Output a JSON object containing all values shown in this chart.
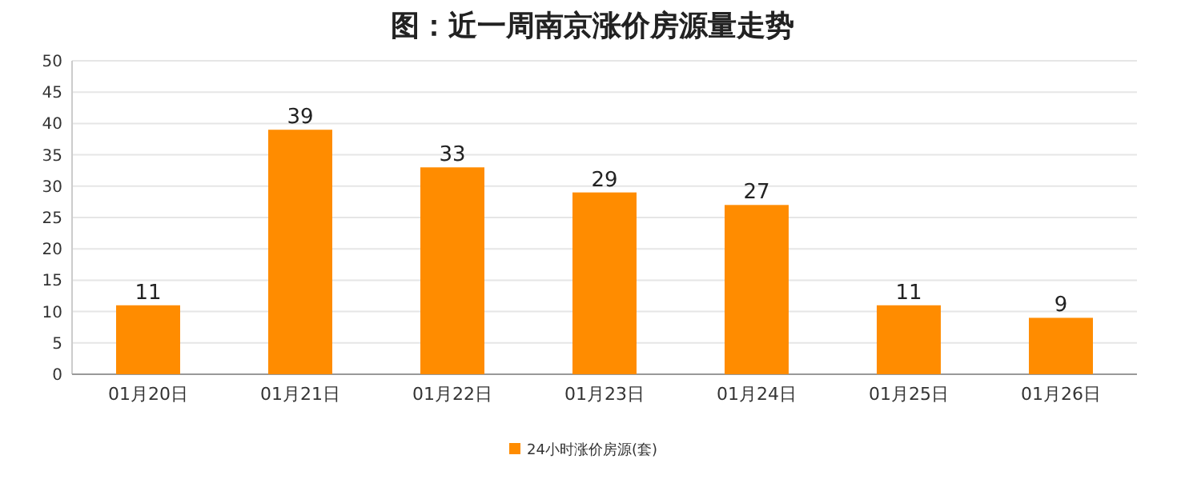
{
  "chart_data": {
    "type": "bar",
    "title": "图：近一周南京涨价房源量走势",
    "categories": [
      "01月20日",
      "01月21日",
      "01月22日",
      "01月23日",
      "01月24日",
      "01月25日",
      "01月26日"
    ],
    "series": [
      {
        "name": "24小时涨价房源(套)",
        "color": "#ff8c00",
        "values": [
          11,
          39,
          33,
          29,
          27,
          11,
          9
        ]
      }
    ],
    "ylim": [
      0,
      50
    ],
    "yticks": [
      0,
      5,
      10,
      15,
      20,
      25,
      30,
      35,
      40,
      45,
      50
    ],
    "grid": "y",
    "legend": "bottom",
    "data_labels": true
  }
}
